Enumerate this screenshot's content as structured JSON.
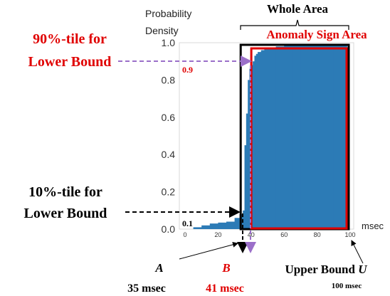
{
  "chart_data": {
    "type": "area",
    "ylabel_line1": "Probability",
    "ylabel_line2": "Density",
    "xunit": "msec",
    "xlim": [
      0,
      100
    ],
    "ylim": [
      0,
      1.0
    ],
    "xticks": [
      0,
      20,
      40,
      60,
      80,
      100
    ],
    "yticks": [
      0.0,
      0.2,
      0.4,
      0.6,
      0.8,
      1.0
    ],
    "ytick_labels": [
      "0.0",
      "0.2",
      "0.4",
      "0.6",
      "0.8",
      "1.0"
    ],
    "cdf": {
      "x": [
        0,
        5,
        10,
        15,
        20,
        25,
        30,
        33,
        35,
        36,
        37,
        38,
        39,
        40,
        41,
        42,
        43,
        44,
        46,
        48,
        50,
        55,
        60,
        65,
        70,
        80,
        90,
        98
      ],
      "y": [
        0.0,
        0.01,
        0.02,
        0.03,
        0.035,
        0.04,
        0.06,
        0.08,
        0.1,
        0.45,
        0.62,
        0.8,
        0.86,
        0.88,
        0.9,
        0.93,
        0.94,
        0.95,
        0.96,
        0.97,
        0.975,
        0.98,
        0.985,
        0.985,
        0.985,
        0.985,
        0.985,
        0.985
      ]
    },
    "colors": {
      "fill": "#2c7bb6",
      "anomaly": "#e00000",
      "arrow_lower": "#9b6fc9"
    }
  },
  "annotations": {
    "whole_area": "Whole Area",
    "anomaly_area": "Anomaly Sign Area",
    "p90_line1": "90%-tile for",
    "p90_line2": "Lower Bound",
    "p90_value": "0.9",
    "p10_line1": "10%-tile for",
    "p10_line2": "Lower Bound",
    "p10_value": "0.1",
    "a_label": "A",
    "a_value": "35 msec",
    "b_label": "B",
    "b_value": "41 msec",
    "upper_label": "Upper Bound",
    "upper_var": "U",
    "upper_value": "100 msec"
  }
}
